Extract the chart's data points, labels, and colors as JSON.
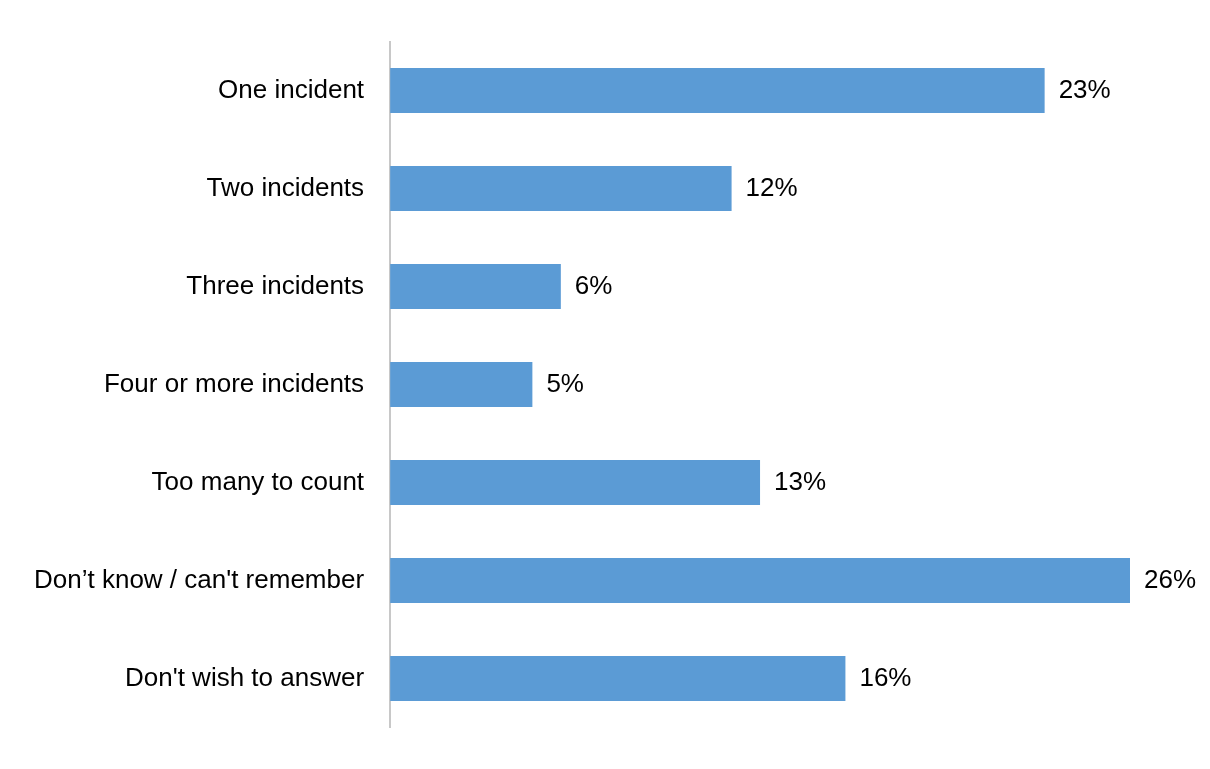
{
  "chart_data": {
    "type": "bar",
    "orientation": "horizontal",
    "categories": [
      "One incident",
      "Two incidents",
      "Three incidents",
      "Four or more incidents",
      "Too many to count",
      "Don’t know / can't remember",
      "Don't wish to answer"
    ],
    "values": [
      23,
      12,
      6,
      5,
      13,
      26,
      16
    ],
    "value_labels": [
      "23%",
      "12%",
      "6%",
      "5%",
      "13%",
      "26%",
      "16%"
    ],
    "color": "#5b9bd5",
    "tick_labels": "y"
  }
}
